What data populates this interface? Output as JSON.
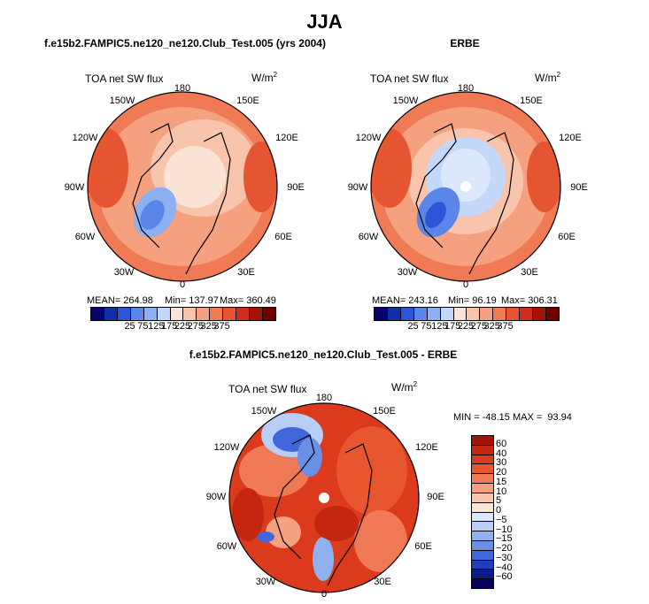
{
  "page_title": "JJA",
  "panels": [
    {
      "title": "f.e15b2.FAMPIC5.ne120_ne120.Club_Test.005 (yrs 2004)",
      "var_label": "TOA net SW flux",
      "units": "W/m",
      "units_sup": "2",
      "stats": {
        "mean": "MEAN= 264.98",
        "min": "Min= 137.97",
        "max": "Max= 360.49"
      },
      "lon_labels": [
        "180",
        "150E",
        "120E",
        "90E",
        "60E",
        "30E",
        "0",
        "30W",
        "60W",
        "90W",
        "120W",
        "150W"
      ],
      "colorbar_labels": [
        "25",
        "75",
        "125",
        "175",
        "225",
        "275",
        "325",
        "375"
      ]
    },
    {
      "title": "ERBE",
      "var_label": "TOA net SW flux",
      "units": "W/m",
      "units_sup": "2",
      "stats": {
        "mean": "MEAN= 243.16",
        "min": "Min= 96.19",
        "max": "Max= 306.31"
      },
      "lon_labels": [
        "180",
        "150E",
        "120E",
        "90E",
        "60E",
        "30E",
        "0",
        "30W",
        "60W",
        "90W",
        "120W",
        "150W"
      ],
      "colorbar_labels": [
        "25",
        "75",
        "125",
        "175",
        "225",
        "275",
        "325",
        "375"
      ]
    },
    {
      "title": "f.e15b2.FAMPIC5.ne120_ne120.Club_Test.005 - ERBE",
      "var_label": "TOA net SW flux",
      "units": "W/m",
      "units_sup": "2",
      "stats": {
        "minmax": "MIN = -48.15 MAX =  93.94"
      },
      "lon_labels": [
        "180",
        "150E",
        "120E",
        "90E",
        "60E",
        "30E",
        "0",
        "30W",
        "60W",
        "90W",
        "120W",
        "150W"
      ],
      "colorbar_labels": [
        "60",
        "40",
        "30",
        "20",
        "15",
        "10",
        "5",
        "0",
        "-5",
        "-10",
        "-15",
        "-20",
        "-30",
        "-40",
        "-60"
      ]
    }
  ],
  "colors": {
    "abs_scale": [
      "#08006b",
      "#1030a8",
      "#2a55d6",
      "#5a86ea",
      "#8cb0f2",
      "#c4d8fa",
      "#fbe3d6",
      "#f9c4ac",
      "#f5a07f",
      "#ef7a55",
      "#e65532",
      "#cc3018",
      "#a01408",
      "#6e0000"
    ],
    "diff_scale": [
      "#a01408",
      "#c4260f",
      "#dc3a1c",
      "#e8562f",
      "#ef7a55",
      "#f5a07f",
      "#f9c4ac",
      "#fbe3d6",
      "#dce8fb",
      "#b8cef6",
      "#90b0ee",
      "#6a90e6",
      "#3f66db",
      "#1f3eb8",
      "#0c1c8c",
      "#06005c"
    ]
  }
}
